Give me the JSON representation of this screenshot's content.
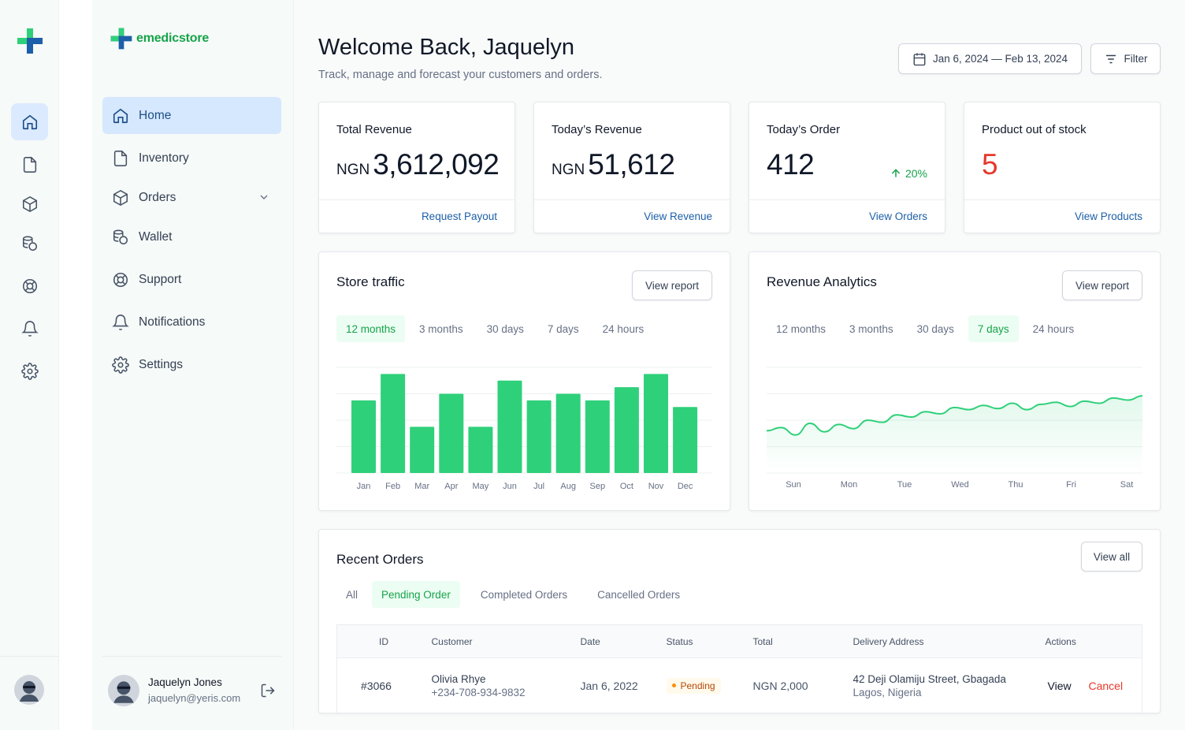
{
  "brand": {
    "name": "emedicstore",
    "accent": "#16a34a",
    "secondary": "#1d5fa8"
  },
  "nav": {
    "items": [
      {
        "label": "Home",
        "icon": "home-icon"
      },
      {
        "label": "Inventory",
        "icon": "file-icon"
      },
      {
        "label": "Orders",
        "icon": "box-icon"
      },
      {
        "label": "Wallet",
        "icon": "coins-icon"
      },
      {
        "label": "Support",
        "icon": "lifebuoy-icon"
      },
      {
        "label": "Notifications",
        "icon": "bell-icon"
      },
      {
        "label": "Settings",
        "icon": "gear-icon"
      }
    ]
  },
  "user": {
    "name": "Jaquelyn Jones",
    "email": "jaquelyn@yeris.com"
  },
  "header": {
    "title": "Welcome Back, Jaquelyn",
    "subtitle": "Track, manage and forecast your customers and orders.",
    "date_range": "Jan 6, 2024 — Feb 13, 2024",
    "filter_label": "Filter"
  },
  "stats": [
    {
      "label": "Total Revenue",
      "currency": "NGN",
      "value": "3,612,092",
      "link": "Request Payout"
    },
    {
      "label": "Today’s Revenue",
      "currency": "NGN",
      "value": "51,612",
      "link": "View Revenue"
    },
    {
      "label": "Today’s Order",
      "value": "412",
      "trend": "20%",
      "link": "View Orders"
    },
    {
      "label": "Product out of stock",
      "value": "5",
      "link": "View Products",
      "value_color": "#e5392b"
    }
  ],
  "store_traffic": {
    "title": "Store traffic",
    "button": "View report",
    "tabs": [
      "12 months",
      "3 months",
      "30 days",
      "7 days",
      "24 hours"
    ],
    "active_tab": 0
  },
  "revenue_analytics": {
    "title": "Revenue Analytics",
    "button": "View report",
    "tabs": [
      "12 months",
      "3 months",
      "30 days",
      "7 days",
      "24 hours"
    ],
    "active_tab": 3
  },
  "chart_data": [
    {
      "type": "bar",
      "categories": [
        "Jan",
        "Feb",
        "Mar",
        "Apr",
        "May",
        "Jun",
        "Jul",
        "Aug",
        "Sep",
        "Oct",
        "Nov",
        "Dec"
      ],
      "values": [
        11,
        15,
        7,
        12,
        7,
        14,
        11,
        12,
        11,
        13,
        15,
        10
      ],
      "ylim": [
        0,
        16
      ],
      "grid": true,
      "color": "#2fd07a"
    },
    {
      "type": "area",
      "categories": [
        "Sun",
        "Mon",
        "Tue",
        "Wed",
        "Thu",
        "Fri",
        "Sat"
      ],
      "x": [
        0,
        0.25,
        0.5,
        0.75,
        1,
        1.25,
        1.5,
        1.75,
        2,
        2.25,
        2.5,
        2.75,
        3,
        3.25,
        3.5,
        3.75,
        4,
        4.25,
        4.5,
        4.75,
        5,
        5.25,
        5.5,
        5.75,
        6,
        6.25,
        6.5
      ],
      "values": [
        40,
        43,
        36,
        47,
        39,
        46,
        42,
        50,
        48,
        55,
        53,
        58,
        56,
        62,
        60,
        64,
        61,
        66,
        60,
        65,
        67,
        63,
        68,
        66,
        71,
        69,
        73
      ],
      "ylim": [
        0,
        100
      ],
      "grid": true,
      "color": "#2fd07a"
    }
  ],
  "orders": {
    "title": "Recent Orders",
    "button": "View all",
    "tabs": [
      "All",
      "Pending Order",
      "Completed Orders",
      "Cancelled Orders"
    ],
    "active_tab": 1,
    "columns": [
      "ID",
      "Customer",
      "Date",
      "Status",
      "Total",
      "Delivery Address",
      "Actions"
    ],
    "rows": [
      {
        "id": "#3066",
        "customer": "Olivia Rhye",
        "phone": "+234-708-934-9832",
        "date": "Jan 6, 2022",
        "status": "Pending",
        "total": "NGN 2,000",
        "address": "42 Deji Olamiju Street, Gbagada",
        "city": "Lagos, Nigeria",
        "view": "View",
        "cancel": "Cancel"
      }
    ]
  }
}
